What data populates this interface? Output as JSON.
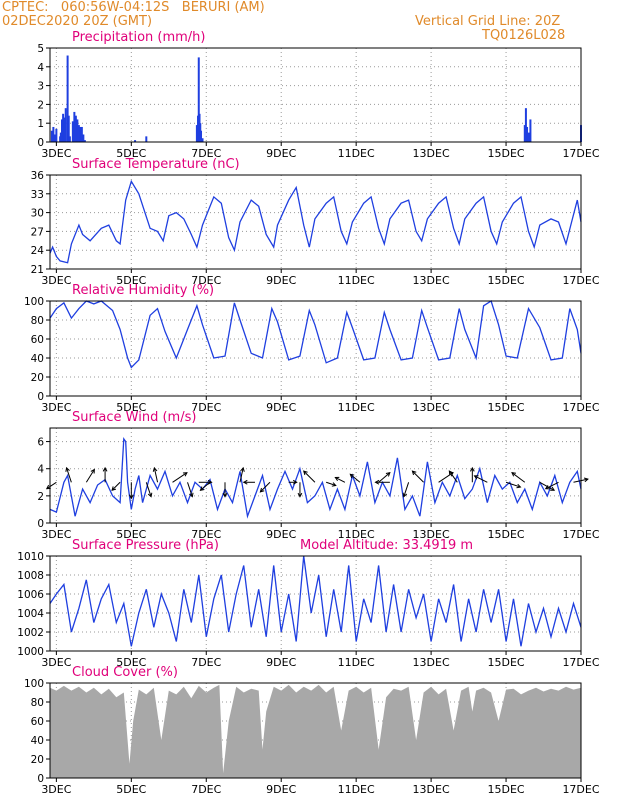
{
  "header": {
    "line1": "CPTEC:   060:56W-04:12S   BERURI (AM)",
    "line2": "02DEC2020 20Z (GMT)",
    "right1": "Vertical Grid Line: 20Z",
    "right2": "TQ0126L028"
  },
  "colors": {
    "header": "#e08a2a",
    "title": "#e0007a",
    "series": "#1f3fe0",
    "cloud": "#a8a8a8",
    "grid": "#9a9a9a",
    "axis": "#000000"
  },
  "x_ticks": [
    "3DEC",
    "5DEC",
    "7DEC",
    "9DEC",
    "11DEC",
    "13DEC",
    "15DEC",
    "17DEC"
  ],
  "model_altitude": "Model Altitude: 33.4919 m",
  "chart_data": [
    {
      "type": "bar",
      "title": "Precipitation (mm/h)",
      "x_range": [
        2.83,
        17.0
      ],
      "ylim": [
        0,
        5
      ],
      "yticks": [
        0,
        1,
        2,
        3,
        4,
        5
      ],
      "grid": true,
      "x": [
        2.88,
        2.92,
        2.96,
        3.0,
        3.1,
        3.12,
        3.15,
        3.18,
        3.2,
        3.22,
        3.25,
        3.3,
        3.33,
        3.36,
        3.44,
        3.48,
        3.52,
        3.56,
        3.6,
        3.64,
        3.68,
        3.72,
        3.76,
        5.1,
        5.4,
        6.75,
        6.78,
        6.8,
        6.82,
        6.84,
        6.86,
        6.9,
        15.5,
        15.53,
        15.56,
        15.6,
        15.65,
        17.0
      ],
      "values": [
        0.6,
        0.8,
        0.4,
        0.7,
        0.3,
        0.5,
        1.2,
        1.5,
        1.0,
        1.3,
        1.8,
        4.6,
        1.4,
        0.3,
        1.1,
        1.6,
        1.4,
        1.2,
        0.9,
        0.8,
        0.8,
        0.4,
        0.1,
        0.1,
        0.3,
        0.9,
        1.4,
        4.5,
        1.5,
        1.0,
        0.6,
        0.2,
        0.9,
        1.8,
        0.8,
        0.5,
        1.2,
        0.9
      ]
    },
    {
      "type": "line",
      "title": "Surface Temperature (nC)",
      "x_range": [
        2.83,
        17.0
      ],
      "ylim": [
        21,
        36
      ],
      "yticks": [
        21,
        24,
        27,
        30,
        33,
        36
      ],
      "grid": true,
      "x": [
        2.83,
        2.9,
        3.0,
        3.1,
        3.3,
        3.4,
        3.6,
        3.7,
        3.9,
        4.2,
        4.4,
        4.6,
        4.7,
        4.85,
        5.0,
        5.2,
        5.5,
        5.7,
        5.85,
        6.0,
        6.2,
        6.4,
        6.6,
        6.75,
        6.9,
        7.2,
        7.4,
        7.6,
        7.75,
        7.9,
        8.2,
        8.4,
        8.6,
        8.8,
        8.9,
        9.2,
        9.4,
        9.6,
        9.75,
        9.9,
        10.2,
        10.4,
        10.6,
        10.75,
        10.9,
        11.2,
        11.4,
        11.6,
        11.75,
        11.9,
        12.2,
        12.4,
        12.6,
        12.75,
        12.9,
        13.2,
        13.4,
        13.6,
        13.75,
        13.9,
        14.2,
        14.4,
        14.6,
        14.75,
        14.9,
        15.2,
        15.4,
        15.6,
        15.75,
        15.9,
        16.2,
        16.4,
        16.6,
        16.75,
        16.9,
        17.0
      ],
      "values": [
        23.5,
        24.5,
        23.0,
        22.3,
        22.0,
        25.0,
        28.0,
        26.5,
        25.5,
        27.5,
        28.0,
        25.5,
        25.0,
        32.0,
        35.0,
        33.0,
        27.5,
        27.0,
        25.5,
        29.5,
        30.0,
        29.0,
        26.5,
        24.5,
        28.0,
        32.5,
        31.5,
        26.0,
        24.0,
        28.5,
        32.0,
        31.0,
        26.5,
        24.5,
        28.0,
        32.0,
        34.0,
        28.0,
        24.5,
        29.0,
        31.5,
        32.5,
        27.0,
        25.0,
        28.5,
        31.5,
        32.5,
        27.5,
        25.0,
        29.0,
        31.5,
        32.0,
        27.0,
        25.5,
        29.0,
        31.5,
        32.5,
        27.5,
        25.0,
        29.0,
        31.5,
        32.5,
        27.0,
        25.0,
        28.5,
        31.5,
        32.5,
        27.0,
        24.5,
        28.0,
        29.0,
        28.5,
        25.0,
        28.5,
        32.0,
        28.5
      ]
    },
    {
      "type": "line",
      "title": "Relative Humidity (%)",
      "x_range": [
        2.83,
        17.0
      ],
      "ylim": [
        0,
        100
      ],
      "yticks": [
        0,
        20,
        40,
        60,
        80,
        100
      ],
      "grid": true,
      "x": [
        2.83,
        3.0,
        3.2,
        3.4,
        3.6,
        3.8,
        4.0,
        4.2,
        4.5,
        4.7,
        4.9,
        5.0,
        5.2,
        5.5,
        5.7,
        5.9,
        6.2,
        6.5,
        6.75,
        6.9,
        7.2,
        7.5,
        7.75,
        7.9,
        8.2,
        8.5,
        8.75,
        8.9,
        9.2,
        9.5,
        9.75,
        9.9,
        10.2,
        10.5,
        10.75,
        10.9,
        11.2,
        11.5,
        11.75,
        11.9,
        12.2,
        12.5,
        12.75,
        12.9,
        13.2,
        13.5,
        13.75,
        13.9,
        14.2,
        14.4,
        14.6,
        14.8,
        15.0,
        15.3,
        15.6,
        15.9,
        16.2,
        16.5,
        16.7,
        16.9,
        17.0
      ],
      "values": [
        82,
        92,
        98,
        82,
        92,
        100,
        97,
        100,
        90,
        70,
        40,
        30,
        38,
        85,
        92,
        68,
        40,
        70,
        95,
        75,
        40,
        42,
        98,
        80,
        45,
        40,
        92,
        78,
        38,
        42,
        90,
        75,
        35,
        40,
        88,
        72,
        38,
        40,
        88,
        70,
        38,
        40,
        90,
        72,
        38,
        40,
        92,
        70,
        40,
        95,
        100,
        75,
        42,
        40,
        92,
        72,
        38,
        40,
        92,
        70,
        45
      ]
    },
    {
      "type": "line",
      "title": "Surface Wind (m/s)",
      "x_range": [
        2.83,
        17.0
      ],
      "ylim": [
        0,
        7
      ],
      "yticks": [
        0,
        2,
        4,
        6
      ],
      "grid": true,
      "x": [
        2.83,
        3.0,
        3.2,
        3.3,
        3.5,
        3.7,
        3.9,
        4.1,
        4.3,
        4.5,
        4.7,
        4.8,
        4.85,
        4.9,
        5.0,
        5.1,
        5.2,
        5.3,
        5.5,
        5.7,
        5.9,
        6.1,
        6.3,
        6.5,
        6.7,
        6.9,
        7.1,
        7.3,
        7.5,
        7.7,
        7.9,
        8.1,
        8.3,
        8.5,
        8.7,
        8.9,
        9.1,
        9.3,
        9.5,
        9.7,
        9.9,
        10.1,
        10.3,
        10.5,
        10.7,
        10.9,
        11.1,
        11.3,
        11.5,
        11.7,
        11.9,
        12.1,
        12.3,
        12.5,
        12.7,
        12.9,
        13.1,
        13.3,
        13.5,
        13.7,
        13.9,
        14.1,
        14.3,
        14.5,
        14.7,
        14.9,
        15.1,
        15.3,
        15.5,
        15.7,
        15.9,
        16.1,
        16.3,
        16.5,
        16.7,
        16.9,
        17.0
      ],
      "values": [
        1.0,
        0.8,
        3.0,
        3.5,
        0.5,
        2.5,
        1.5,
        2.8,
        3.2,
        2.0,
        1.5,
        6.2,
        6.0,
        3.0,
        1.0,
        2.5,
        3.5,
        1.5,
        3.5,
        2.5,
        3.8,
        2.0,
        3.0,
        1.5,
        3.0,
        2.5,
        3.2,
        1.0,
        2.5,
        1.5,
        3.8,
        0.5,
        2.0,
        3.5,
        1.0,
        2.5,
        3.8,
        2.5,
        4.0,
        1.5,
        2.0,
        3.0,
        1.0,
        2.5,
        1.0,
        3.5,
        2.0,
        4.5,
        1.5,
        3.0,
        2.0,
        4.8,
        1.0,
        2.0,
        0.5,
        4.5,
        1.5,
        3.0,
        2.0,
        3.5,
        1.8,
        2.5,
        4.0,
        1.5,
        3.5,
        2.5,
        3.0,
        1.5,
        2.5,
        1.0,
        3.0,
        2.0,
        3.5,
        1.5,
        3.0,
        3.8,
        2.5
      ],
      "vectors": [
        {
          "x": 3.0,
          "u": -0.6,
          "v": -0.4
        },
        {
          "x": 3.4,
          "u": -0.3,
          "v": 0.9
        },
        {
          "x": 3.8,
          "u": 0.5,
          "v": 0.8
        },
        {
          "x": 4.3,
          "u": 0.0,
          "v": 0.9
        },
        {
          "x": 4.7,
          "u": -0.5,
          "v": -0.5
        },
        {
          "x": 5.0,
          "u": 0.0,
          "v": -1.0
        },
        {
          "x": 5.4,
          "u": 0.3,
          "v": -0.9
        },
        {
          "x": 5.7,
          "u": -0.2,
          "v": 0.9
        },
        {
          "x": 6.1,
          "u": 0.9,
          "v": 0.6
        },
        {
          "x": 6.5,
          "u": 0.3,
          "v": -0.9
        },
        {
          "x": 6.8,
          "u": 0.8,
          "v": 0.0
        },
        {
          "x": 7.1,
          "u": -0.6,
          "v": -0.5
        },
        {
          "x": 7.5,
          "u": 0.0,
          "v": -0.9
        },
        {
          "x": 7.9,
          "u": 0.2,
          "v": 0.9
        },
        {
          "x": 8.3,
          "u": -0.7,
          "v": 0.0
        },
        {
          "x": 8.7,
          "u": -0.6,
          "v": -0.6
        },
        {
          "x": 9.2,
          "u": 0.5,
          "v": 0.0
        },
        {
          "x": 9.5,
          "u": 0.0,
          "v": -0.9
        },
        {
          "x": 9.9,
          "u": -0.7,
          "v": 0.7
        },
        {
          "x": 10.2,
          "u": 0.6,
          "v": -0.2
        },
        {
          "x": 10.7,
          "u": -0.6,
          "v": 0.3
        },
        {
          "x": 11.1,
          "u": -0.6,
          "v": 0.5
        },
        {
          "x": 11.6,
          "u": 0.7,
          "v": 0.6
        },
        {
          "x": 11.9,
          "u": -0.9,
          "v": 0.0
        },
        {
          "x": 12.4,
          "u": -0.3,
          "v": -0.9
        },
        {
          "x": 12.8,
          "u": -0.7,
          "v": 0.7
        },
        {
          "x": 13.2,
          "u": 0.9,
          "v": 0.6
        },
        {
          "x": 13.7,
          "u": -0.5,
          "v": 0.7
        },
        {
          "x": 14.1,
          "u": 0.0,
          "v": 0.9
        },
        {
          "x": 14.5,
          "u": -0.8,
          "v": 0.4
        },
        {
          "x": 15.0,
          "u": 0.9,
          "v": -0.3
        },
        {
          "x": 15.5,
          "u": -0.8,
          "v": 0.6
        },
        {
          "x": 15.9,
          "u": 0.9,
          "v": -0.5
        },
        {
          "x": 16.4,
          "u": -0.8,
          "v": -0.4
        },
        {
          "x": 16.8,
          "u": 0.9,
          "v": 0.2
        }
      ]
    },
    {
      "type": "line",
      "title": "Surface Pressure (hPa)",
      "x_range": [
        2.83,
        17.0
      ],
      "ylim": [
        1000,
        1010
      ],
      "yticks": [
        1000,
        1002,
        1004,
        1006,
        1008,
        1010
      ],
      "grid": true,
      "x": [
        2.83,
        3.0,
        3.2,
        3.4,
        3.6,
        3.8,
        4.0,
        4.2,
        4.4,
        4.6,
        4.8,
        5.0,
        5.2,
        5.4,
        5.6,
        5.8,
        6.0,
        6.2,
        6.4,
        6.6,
        6.8,
        7.0,
        7.2,
        7.4,
        7.6,
        7.8,
        8.0,
        8.2,
        8.4,
        8.6,
        8.8,
        9.0,
        9.2,
        9.4,
        9.6,
        9.8,
        10.0,
        10.2,
        10.4,
        10.6,
        10.8,
        11.0,
        11.2,
        11.4,
        11.6,
        11.8,
        12.0,
        12.2,
        12.4,
        12.6,
        12.8,
        13.0,
        13.2,
        13.4,
        13.6,
        13.8,
        14.0,
        14.2,
        14.4,
        14.6,
        14.8,
        15.0,
        15.2,
        15.4,
        15.6,
        15.8,
        16.0,
        16.2,
        16.4,
        16.6,
        16.8,
        17.0
      ],
      "values": [
        1005.0,
        1006.0,
        1007.0,
        1002.0,
        1004.5,
        1007.5,
        1003.0,
        1005.5,
        1007.0,
        1003.0,
        1005.0,
        1000.5,
        1004.0,
        1006.5,
        1002.5,
        1006.0,
        1004.0,
        1001.0,
        1006.5,
        1003.0,
        1008.0,
        1001.5,
        1005.5,
        1008.0,
        1002.0,
        1006.0,
        1009.0,
        1002.5,
        1006.5,
        1001.5,
        1009.0,
        1002.0,
        1006.0,
        1001.0,
        1010.0,
        1004.0,
        1008.0,
        1001.5,
        1006.5,
        1002.0,
        1009.0,
        1001.0,
        1005.5,
        1003.0,
        1009.0,
        1002.0,
        1007.0,
        1002.0,
        1006.5,
        1003.5,
        1006.0,
        1001.0,
        1005.5,
        1003.0,
        1007.0,
        1001.0,
        1005.5,
        1002.0,
        1006.5,
        1003.0,
        1006.5,
        1001.0,
        1005.5,
        1000.5,
        1005.0,
        1002.0,
        1004.5,
        1001.5,
        1004.5,
        1002.0,
        1005.0,
        1002.5
      ]
    },
    {
      "type": "area",
      "title": "Cloud Cover (%)",
      "x_range": [
        2.83,
        17.0
      ],
      "ylim": [
        0,
        100
      ],
      "yticks": [
        0,
        20,
        40,
        60,
        80,
        100
      ],
      "grid": true,
      "x": [
        2.83,
        3.0,
        3.2,
        3.4,
        3.6,
        3.8,
        4.0,
        4.2,
        4.4,
        4.6,
        4.8,
        4.95,
        5.05,
        5.2,
        5.4,
        5.6,
        5.8,
        6.0,
        6.2,
        6.4,
        6.6,
        6.8,
        7.0,
        7.2,
        7.35,
        7.45,
        7.6,
        7.8,
        8.0,
        8.2,
        8.4,
        8.5,
        8.6,
        8.8,
        9.0,
        9.2,
        9.4,
        9.6,
        9.8,
        10.0,
        10.2,
        10.4,
        10.6,
        10.8,
        11.0,
        11.2,
        11.4,
        11.6,
        11.8,
        12.0,
        12.2,
        12.4,
        12.6,
        12.8,
        13.0,
        13.2,
        13.4,
        13.6,
        13.8,
        14.0,
        14.1,
        14.2,
        14.4,
        14.6,
        14.8,
        15.0,
        15.2,
        15.4,
        15.6,
        15.8,
        16.0,
        16.2,
        16.4,
        16.6,
        16.8,
        17.0
      ],
      "values": [
        95,
        92,
        97,
        92,
        96,
        90,
        95,
        88,
        94,
        85,
        90,
        15,
        60,
        93,
        88,
        95,
        40,
        92,
        88,
        96,
        84,
        97,
        90,
        95,
        98,
        5,
        60,
        96,
        90,
        94,
        92,
        30,
        70,
        96,
        92,
        98,
        90,
        96,
        92,
        98,
        90,
        96,
        50,
        92,
        96,
        90,
        95,
        30,
        85,
        94,
        92,
        96,
        40,
        90,
        96,
        88,
        94,
        50,
        92,
        96,
        70,
        92,
        95,
        90,
        60,
        93,
        94,
        88,
        92,
        95,
        91,
        94,
        92,
        96,
        93,
        95
      ]
    }
  ]
}
